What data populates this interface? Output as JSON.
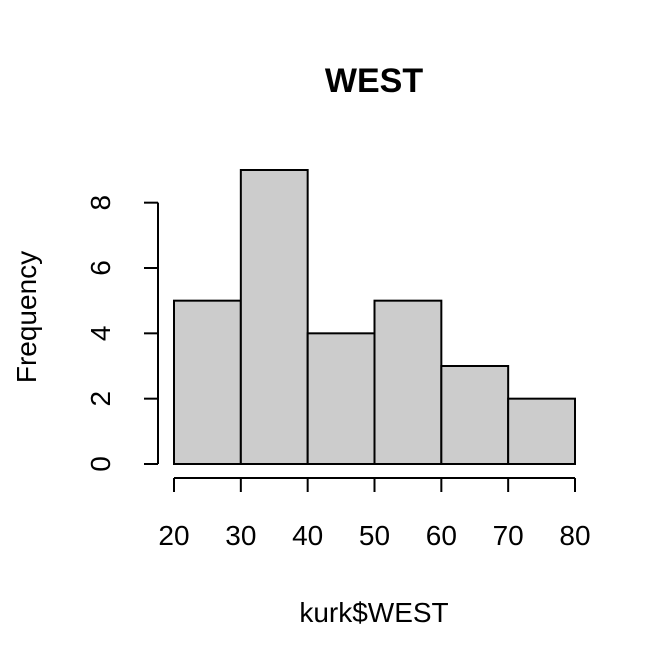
{
  "chart_data": {
    "type": "bar",
    "title": "WEST",
    "xlabel": "kurk$WEST",
    "ylabel": "Frequency",
    "bins": [
      {
        "start": 20,
        "end": 30,
        "value": 5
      },
      {
        "start": 30,
        "end": 40,
        "value": 9
      },
      {
        "start": 40,
        "end": 50,
        "value": 4
      },
      {
        "start": 50,
        "end": 60,
        "value": 5
      },
      {
        "start": 60,
        "end": 70,
        "value": 3
      },
      {
        "start": 70,
        "end": 80,
        "value": 2
      }
    ],
    "xlim": [
      20,
      80
    ],
    "ylim": [
      0,
      9
    ],
    "x_ticks": [
      "20",
      "30",
      "40",
      "50",
      "60",
      "70",
      "80"
    ],
    "y_ticks": [
      "0",
      "2",
      "4",
      "6",
      "8"
    ],
    "bar_color": "#cccccc",
    "grid": false
  }
}
